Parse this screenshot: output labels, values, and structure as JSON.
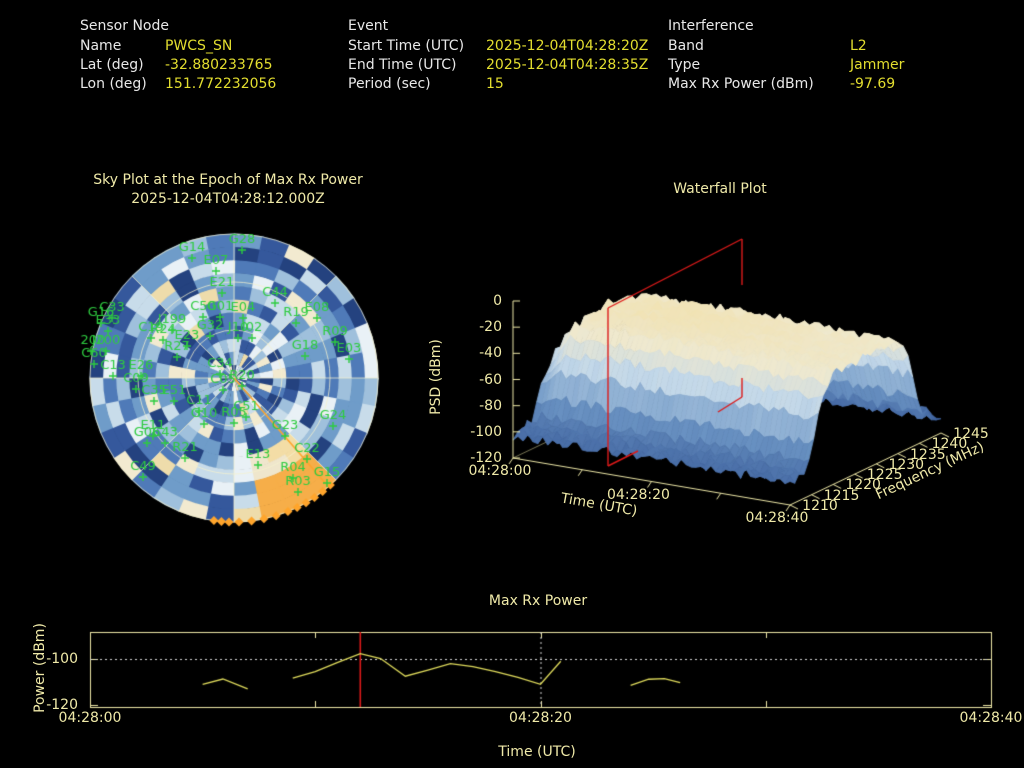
{
  "colors": {
    "background": "#000000",
    "label_white": "#e8e8e8",
    "value_yellow": "#e3de2f",
    "plot_khaki": "#efe9a8",
    "satellite_green": "#2ecc40",
    "track_orange": "#ffa52c",
    "highlight_red": "#dd1a1a",
    "series_yellow": "#e0dc5c"
  },
  "header": {
    "sensor_node": {
      "title": "Sensor Node",
      "rows": [
        {
          "label": "Name",
          "value": "PWCS_SN"
        },
        {
          "label": "Lat (deg)",
          "value": "-32.880233765"
        },
        {
          "label": "Lon (deg)",
          "value": "151.772232056"
        }
      ]
    },
    "event": {
      "title": "Event",
      "rows": [
        {
          "label": "Start Time (UTC)",
          "value": "2025-12-04T04:28:20Z"
        },
        {
          "label": "End Time (UTC)",
          "value": "2025-12-04T04:28:35Z"
        },
        {
          "label": "Period (sec)",
          "value": "15"
        }
      ]
    },
    "interference": {
      "title": "Interference",
      "rows": [
        {
          "label": "Band",
          "value": "L2"
        },
        {
          "label": "Type",
          "value": "Jammer"
        },
        {
          "label": "Max Rx Power (dBm)",
          "value": "-97.69"
        }
      ]
    }
  },
  "chart_data": [
    {
      "type": "heatmap",
      "subtype": "polar-sky-plot",
      "title": "Sky Plot at the Epoch of Max Rx Power",
      "subtitle": "2025-12-04T04:28:12.000Z",
      "colormap": "blue-to-cream, orange = interference direction",
      "elevation_rings_deg": [
        0,
        30,
        60
      ],
      "satellites": [
        [
          "G28",
          242,
          250
        ],
        [
          "G14",
          192,
          258
        ],
        [
          "E07",
          216,
          271
        ],
        [
          "E21",
          222,
          293
        ],
        [
          "C44",
          275,
          303
        ],
        [
          "R19",
          296,
          323
        ],
        [
          "E08",
          317,
          318
        ],
        [
          "R09",
          335,
          342
        ],
        [
          "G18",
          305,
          356
        ],
        [
          "E03",
          349,
          359
        ],
        [
          "C33",
          112,
          318
        ],
        [
          "G16",
          101,
          323
        ],
        [
          "E33",
          108,
          331
        ],
        [
          "J199",
          172,
          330
        ],
        [
          "C19",
          151,
          338
        ],
        [
          "R24",
          163,
          340
        ],
        [
          "G32",
          210,
          336
        ],
        [
          "J10",
          238,
          338
        ],
        [
          "I02",
          252,
          338
        ],
        [
          "C50",
          203,
          317
        ],
        [
          "G01",
          220,
          317
        ],
        [
          "E04",
          243,
          318
        ],
        [
          "E23",
          187,
          346
        ],
        [
          "R27",
          177,
          357
        ],
        [
          "I200",
          91,
          351
        ],
        [
          "J200",
          106,
          351
        ],
        [
          "C60",
          94,
          364
        ],
        [
          "C13",
          113,
          376
        ],
        [
          "E26",
          141,
          376
        ],
        [
          "C09",
          136,
          389
        ],
        [
          "C35",
          154,
          401
        ],
        [
          "E51",
          174,
          401
        ],
        [
          "C34",
          220,
          374
        ],
        [
          "C05",
          223,
          390
        ],
        [
          "R20",
          242,
          386
        ],
        [
          "C11",
          199,
          411
        ],
        [
          "G10",
          204,
          424
        ],
        [
          "R05",
          234,
          423
        ],
        [
          "C51",
          246,
          417
        ],
        [
          "G24",
          333,
          426
        ],
        [
          "G23",
          285,
          436
        ],
        [
          "C22",
          307,
          459
        ],
        [
          "E13",
          258,
          465
        ],
        [
          "R04",
          293,
          478
        ],
        [
          "G15",
          327,
          483
        ],
        [
          "R03",
          298,
          492
        ],
        [
          "C49",
          143,
          477
        ],
        [
          "R21",
          185,
          458
        ],
        [
          "G06",
          147,
          443
        ],
        [
          "C43",
          165,
          443
        ],
        [
          "E11",
          153,
          436
        ]
      ],
      "interference_track": {
        "line_azimuth_deg": 139,
        "marker_azimuths_deg": [
          138,
          142,
          146,
          150,
          154,
          158,
          163,
          168,
          173,
          178,
          182,
          185,
          188
        ]
      }
    },
    {
      "type": "heatmap",
      "subtype": "3d-surface-waterfall",
      "title": "Waterfall Plot",
      "zlabel": "PSD (dBm)",
      "psd_ticks": [
        0,
        -20,
        -40,
        -60,
        -80,
        -100,
        -120
      ],
      "zlim": [
        -120,
        0
      ],
      "xlabel": "Time (UTC)",
      "x_ticks": [
        "04:28:00",
        "04:28:20",
        "04:28:40"
      ],
      "ylabel": "Frequency (MHz)",
      "freq_ticks": [
        1210,
        1215,
        1220,
        1225,
        1230,
        1235,
        1240,
        1245
      ],
      "freq_range_mhz": [
        1210,
        1245
      ],
      "plateau_freq_range_mhz": [
        1216.5,
        1238.5
      ],
      "plateau_psd_dbm": -30,
      "noise_floor_psd_dbm": -103,
      "highlight_plane_time": "04:28:12"
    },
    {
      "type": "line",
      "title": "Max Rx Power",
      "xlabel": "Time (UTC)",
      "ylabel": "Power (dBm)",
      "x_ticks": [
        "04:28:00",
        "04:28:20",
        "04:28:40"
      ],
      "x_tick_seconds": [
        0,
        20,
        40
      ],
      "minor_tick_seconds": [
        10,
        30
      ],
      "yticks": [
        -100,
        -120
      ],
      "ylim": [
        -121,
        -88
      ],
      "threshold_dbm": -100,
      "red_vline_time_sec": 12,
      "dotted_vline_time_sec": 20,
      "series": [
        {
          "name": "Max Rx Power (dBm)",
          "points": [
            [
              5,
              -111
            ],
            [
              5.9,
              -108.7
            ],
            [
              7,
              -113
            ],
            null,
            [
              9,
              -108.3
            ],
            [
              10,
              -105.5
            ],
            [
              11,
              -101.5
            ],
            [
              12,
              -97.69
            ],
            [
              12.9,
              -99.8
            ],
            [
              14,
              -107.5
            ],
            [
              15,
              -104.8
            ],
            [
              16,
              -102
            ],
            [
              17,
              -103.3
            ],
            [
              18,
              -105.5
            ],
            [
              19,
              -108
            ],
            [
              20,
              -111
            ],
            [
              20.9,
              -101
            ],
            null,
            [
              24,
              -111.5
            ],
            [
              24.8,
              -108.8
            ],
            [
              25.5,
              -108.5
            ],
            [
              26.2,
              -110.3
            ]
          ]
        }
      ]
    }
  ]
}
